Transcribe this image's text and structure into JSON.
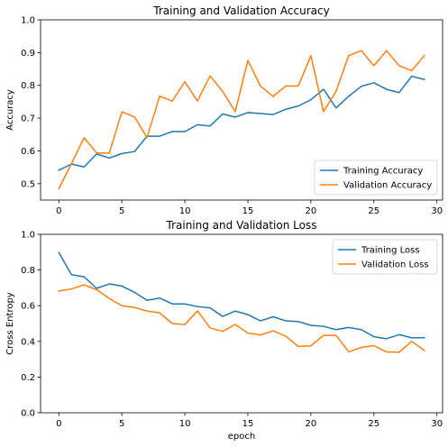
{
  "colors": {
    "training": "#1f77b4",
    "validation": "#ff7f0e"
  },
  "chart_data": [
    {
      "type": "line",
      "title": "Training and Validation Accuracy",
      "xlabel": "",
      "ylabel": "Accuracy",
      "xlim": [
        -1.45,
        30.45
      ],
      "ylim": [
        0.45,
        1.0
      ],
      "xticks": [
        0,
        5,
        10,
        15,
        20,
        25,
        30
      ],
      "yticks": [
        0.5,
        0.6,
        0.7,
        0.8,
        0.9,
        1.0
      ],
      "grid": false,
      "legend_position": "lower-right",
      "x": [
        0,
        1,
        2,
        3,
        4,
        5,
        6,
        7,
        8,
        9,
        10,
        11,
        12,
        13,
        14,
        15,
        16,
        17,
        18,
        19,
        20,
        21,
        22,
        23,
        24,
        25,
        26,
        27,
        28,
        29
      ],
      "series": [
        {
          "name": "Training Accuracy",
          "color_key": "training",
          "values": [
            0.541,
            0.56,
            0.551,
            0.591,
            0.578,
            0.592,
            0.598,
            0.645,
            0.645,
            0.659,
            0.659,
            0.68,
            0.676,
            0.713,
            0.703,
            0.717,
            0.714,
            0.711,
            0.727,
            0.737,
            0.756,
            0.788,
            0.731,
            0.767,
            0.797,
            0.808,
            0.788,
            0.778,
            0.828,
            0.818
          ]
        },
        {
          "name": "Validation Accuracy",
          "color_key": "validation",
          "values": [
            0.485,
            0.561,
            0.64,
            0.594,
            0.593,
            0.719,
            0.704,
            0.641,
            0.767,
            0.752,
            0.811,
            0.752,
            0.829,
            0.781,
            0.72,
            0.876,
            0.798,
            0.766,
            0.798,
            0.798,
            0.891,
            0.72,
            0.782,
            0.891,
            0.906,
            0.86,
            0.906,
            0.86,
            0.845,
            0.891
          ]
        }
      ]
    },
    {
      "type": "line",
      "title": "Training and Validation Loss",
      "xlabel": "epoch",
      "ylabel": "Cross Entropy",
      "xlim": [
        -1.45,
        30.45
      ],
      "ylim": [
        0.0,
        1.0
      ],
      "xticks": [
        0,
        5,
        10,
        15,
        20,
        25,
        30
      ],
      "yticks": [
        0.0,
        0.2,
        0.4,
        0.6,
        0.8,
        1.0
      ],
      "grid": false,
      "legend_position": "upper-right",
      "x": [
        0,
        1,
        2,
        3,
        4,
        5,
        6,
        7,
        8,
        9,
        10,
        11,
        12,
        13,
        14,
        15,
        16,
        17,
        18,
        19,
        20,
        21,
        22,
        23,
        24,
        25,
        26,
        27,
        28,
        29
      ],
      "series": [
        {
          "name": "Training Loss",
          "color_key": "training",
          "values": [
            0.898,
            0.774,
            0.762,
            0.697,
            0.722,
            0.71,
            0.675,
            0.63,
            0.643,
            0.61,
            0.61,
            0.595,
            0.588,
            0.54,
            0.57,
            0.55,
            0.515,
            0.538,
            0.515,
            0.511,
            0.49,
            0.484,
            0.466,
            0.478,
            0.466,
            0.426,
            0.415,
            0.438,
            0.42,
            0.421
          ]
        },
        {
          "name": "Validation Loss",
          "color_key": "validation",
          "values": [
            0.682,
            0.694,
            0.717,
            0.69,
            0.64,
            0.6,
            0.59,
            0.57,
            0.56,
            0.5,
            0.494,
            0.571,
            0.475,
            0.456,
            0.495,
            0.446,
            0.436,
            0.459,
            0.429,
            0.372,
            0.375,
            0.434,
            0.434,
            0.341,
            0.366,
            0.376,
            0.341,
            0.339,
            0.4,
            0.35
          ]
        }
      ]
    }
  ]
}
